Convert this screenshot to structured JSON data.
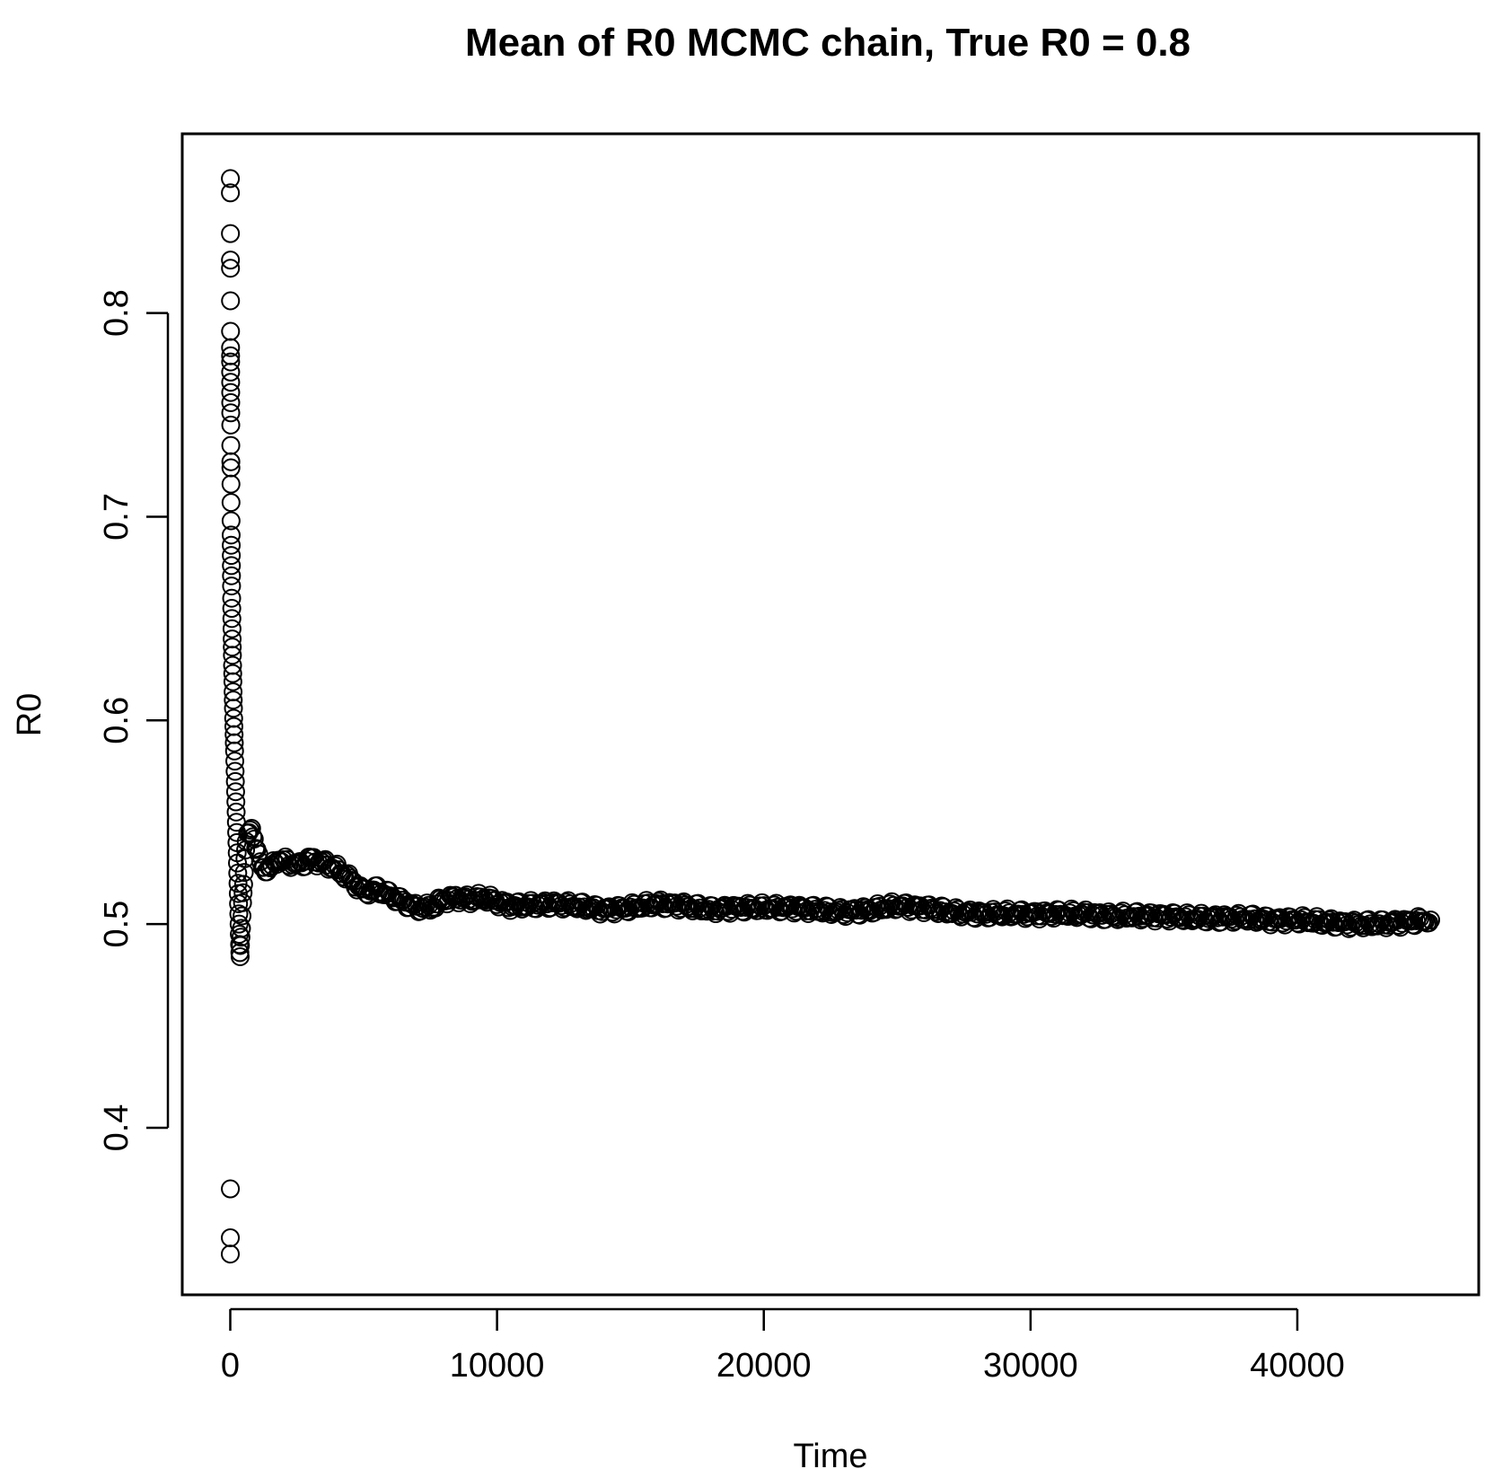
{
  "chart_data": {
    "type": "scatter",
    "title": "Mean of R0 MCMC chain, True R0 =  0.8",
    "xlabel": "Time",
    "ylabel": "R0",
    "xlim": [
      -1800,
      46800
    ],
    "ylim": [
      0.318,
      0.888
    ],
    "x_ticks": [
      0,
      10000,
      20000,
      30000,
      40000
    ],
    "x_tick_labels": [
      "0",
      "10000",
      "20000",
      "30000",
      "40000"
    ],
    "y_ticks": [
      0.4,
      0.5,
      0.6,
      0.7,
      0.8
    ],
    "y_tick_labels": [
      "0.4",
      "0.5",
      "0.6",
      "0.7",
      "0.8"
    ],
    "grid": false,
    "legend": "none",
    "marker": "open-circle",
    "color": "#000000",
    "series": [
      {
        "early_points": [
          [
            1,
            0.338
          ],
          [
            2,
            0.346
          ],
          [
            3,
            0.37
          ],
          [
            4,
            0.866
          ],
          [
            5,
            0.859
          ],
          [
            6,
            0.839
          ],
          [
            7,
            0.826
          ],
          [
            8,
            0.822
          ],
          [
            9,
            0.806
          ],
          [
            10,
            0.791
          ],
          [
            11,
            0.783
          ],
          [
            12,
            0.779
          ],
          [
            13,
            0.776
          ],
          [
            14,
            0.771
          ],
          [
            15,
            0.766
          ],
          [
            16,
            0.761
          ],
          [
            17,
            0.756
          ],
          [
            18,
            0.751
          ],
          [
            19,
            0.745
          ],
          [
            20,
            0.735
          ],
          [
            22,
            0.727
          ],
          [
            24,
            0.724
          ],
          [
            26,
            0.716
          ],
          [
            28,
            0.707
          ],
          [
            30,
            0.698
          ],
          [
            33,
            0.691
          ],
          [
            36,
            0.686
          ],
          [
            39,
            0.681
          ],
          [
            42,
            0.676
          ],
          [
            45,
            0.671
          ],
          [
            48,
            0.666
          ],
          [
            52,
            0.66
          ],
          [
            56,
            0.655
          ],
          [
            60,
            0.65
          ],
          [
            65,
            0.645
          ],
          [
            70,
            0.64
          ],
          [
            75,
            0.636
          ],
          [
            80,
            0.632
          ],
          [
            86,
            0.627
          ],
          [
            92,
            0.623
          ],
          [
            98,
            0.619
          ],
          [
            105,
            0.614
          ],
          [
            112,
            0.61
          ],
          [
            119,
            0.606
          ],
          [
            127,
            0.601
          ],
          [
            135,
            0.597
          ],
          [
            143,
            0.593
          ],
          [
            151,
            0.589
          ],
          [
            160,
            0.585
          ],
          [
            170,
            0.58
          ],
          [
            180,
            0.575
          ],
          [
            190,
            0.57
          ],
          [
            200,
            0.565
          ],
          [
            210,
            0.56
          ],
          [
            220,
            0.555
          ],
          [
            230,
            0.55
          ],
          [
            240,
            0.545
          ],
          [
            250,
            0.54
          ],
          [
            260,
            0.535
          ],
          [
            270,
            0.53
          ],
          [
            280,
            0.525
          ],
          [
            290,
            0.52
          ],
          [
            300,
            0.515
          ],
          [
            310,
            0.51
          ],
          [
            320,
            0.505
          ],
          [
            330,
            0.5
          ],
          [
            340,
            0.495
          ],
          [
            350,
            0.49
          ],
          [
            360,
            0.486
          ],
          [
            370,
            0.484
          ]
        ],
        "trend_points": [
          [
            380,
            0.49
          ],
          [
            420,
            0.5
          ],
          [
            460,
            0.51
          ],
          [
            500,
            0.52
          ],
          [
            550,
            0.53
          ],
          [
            600,
            0.54
          ],
          [
            700,
            0.545
          ],
          [
            800,
            0.548
          ],
          [
            900,
            0.542
          ],
          [
            1000,
            0.535
          ],
          [
            1200,
            0.528
          ],
          [
            1500,
            0.527
          ],
          [
            1800,
            0.532
          ],
          [
            2200,
            0.53
          ],
          [
            2600,
            0.529
          ],
          [
            3000,
            0.532
          ],
          [
            3500,
            0.53
          ],
          [
            4000,
            0.527
          ],
          [
            4500,
            0.522
          ],
          [
            5000,
            0.516
          ],
          [
            5500,
            0.517
          ],
          [
            6000,
            0.514
          ],
          [
            6500,
            0.511
          ],
          [
            7000,
            0.508
          ],
          [
            7500,
            0.508
          ],
          [
            8000,
            0.512
          ],
          [
            8500,
            0.513
          ],
          [
            9000,
            0.512
          ],
          [
            9500,
            0.513
          ],
          [
            10000,
            0.511
          ],
          [
            10500,
            0.509
          ],
          [
            11000,
            0.509
          ],
          [
            12000,
            0.51
          ],
          [
            13000,
            0.509
          ],
          [
            14000,
            0.507
          ],
          [
            15000,
            0.508
          ],
          [
            16000,
            0.51
          ],
          [
            17000,
            0.509
          ],
          [
            18000,
            0.507
          ],
          [
            19000,
            0.508
          ],
          [
            20000,
            0.508
          ],
          [
            21000,
            0.508
          ],
          [
            22000,
            0.507
          ],
          [
            23000,
            0.506
          ],
          [
            24000,
            0.507
          ],
          [
            25000,
            0.509
          ],
          [
            26000,
            0.508
          ],
          [
            27000,
            0.506
          ],
          [
            28000,
            0.505
          ],
          [
            29000,
            0.505
          ],
          [
            30000,
            0.505
          ],
          [
            31000,
            0.505
          ],
          [
            32000,
            0.505
          ],
          [
            33000,
            0.504
          ],
          [
            34000,
            0.504
          ],
          [
            35000,
            0.504
          ],
          [
            36000,
            0.503
          ],
          [
            37000,
            0.503
          ],
          [
            38000,
            0.503
          ],
          [
            39000,
            0.502
          ],
          [
            40000,
            0.502
          ],
          [
            41000,
            0.501
          ],
          [
            42000,
            0.5
          ],
          [
            43000,
            0.5
          ],
          [
            44000,
            0.501
          ],
          [
            45000,
            0.502
          ]
        ]
      }
    ]
  }
}
